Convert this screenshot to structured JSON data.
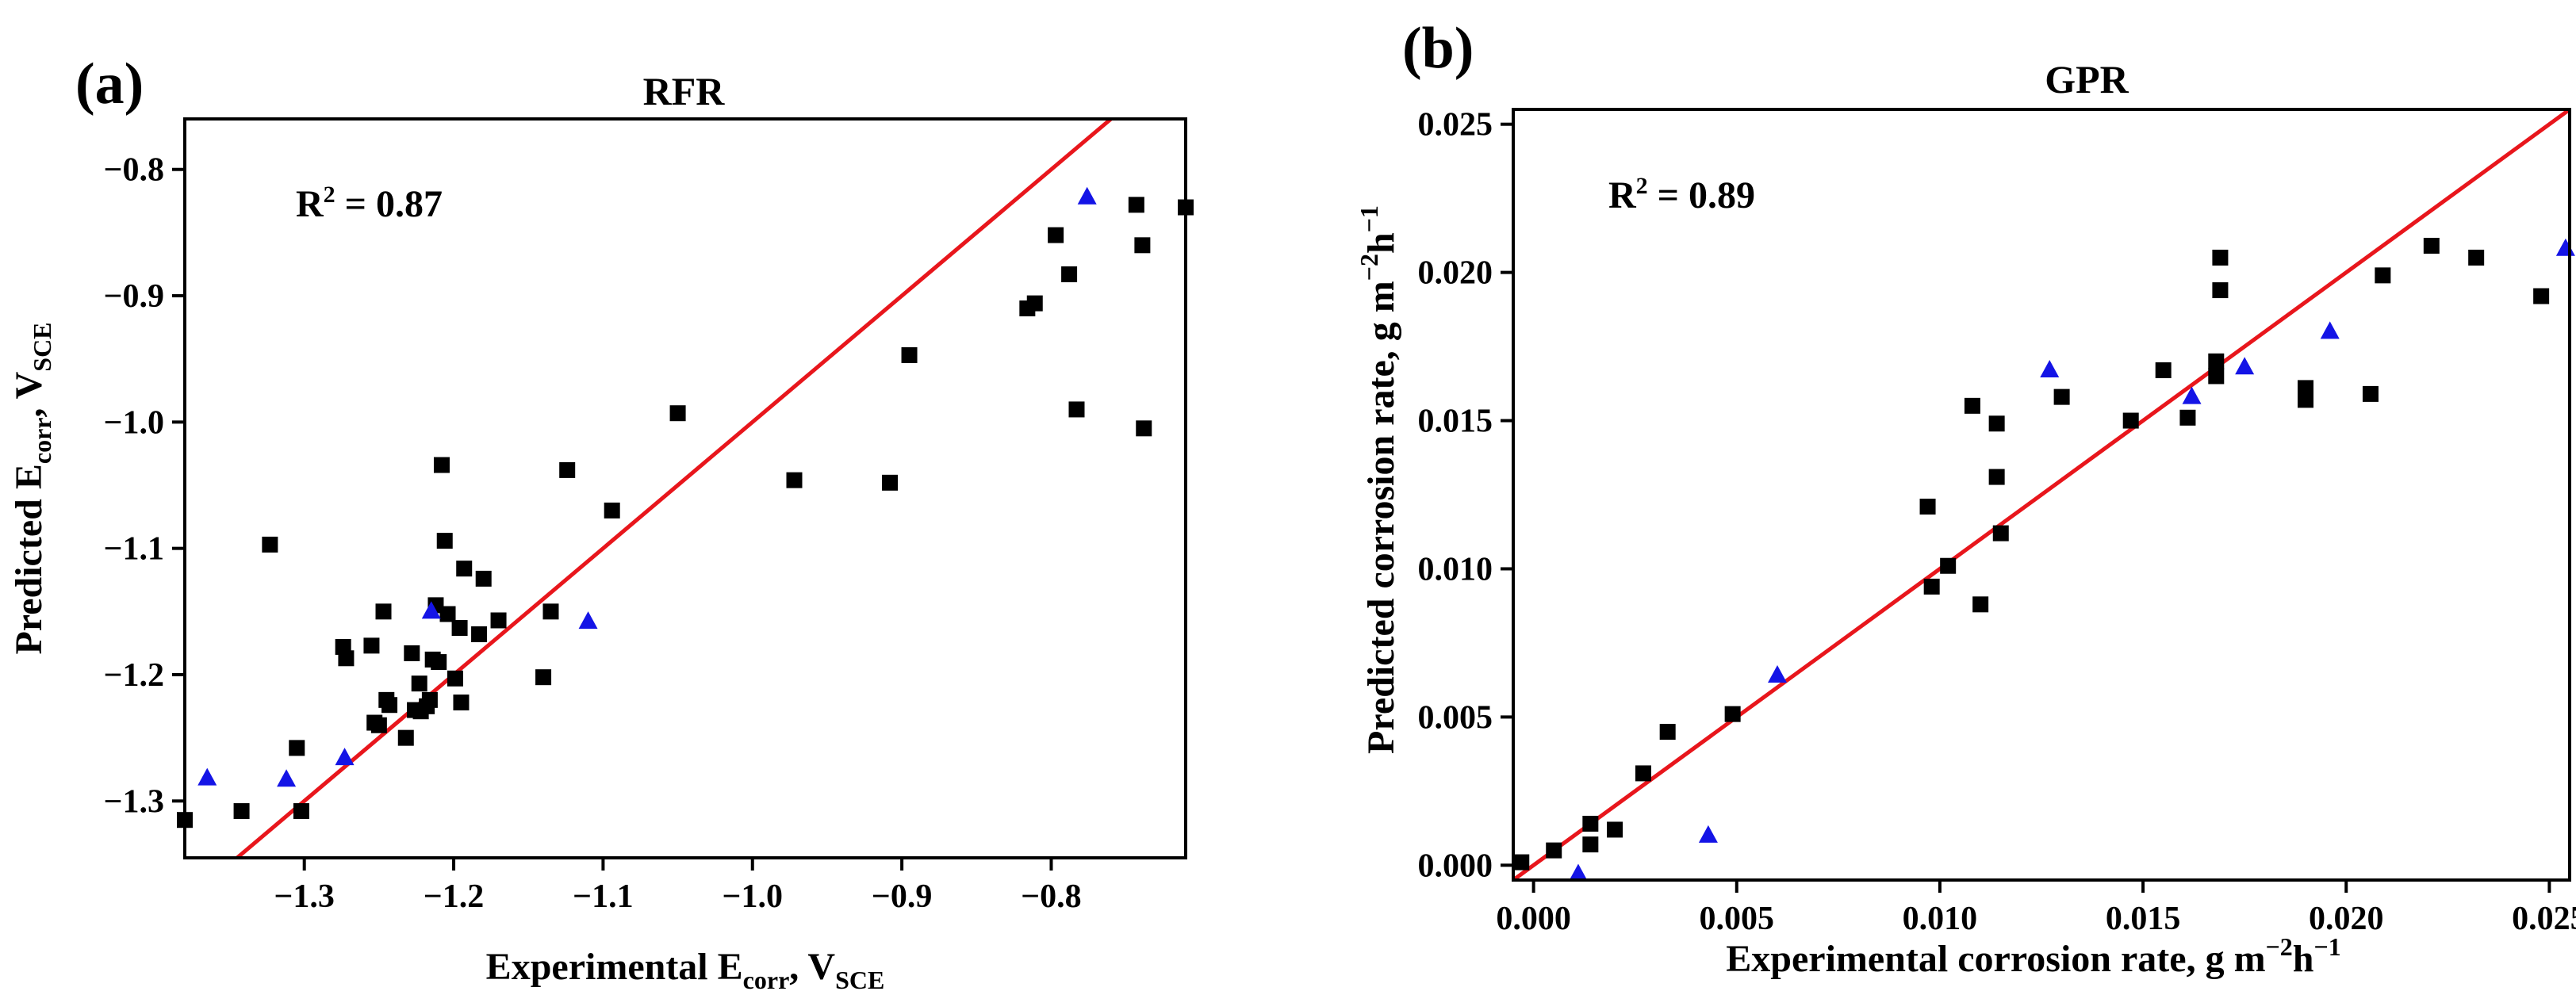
{
  "colors": {
    "fit_line": "#e8161c",
    "train_marker": "#000000",
    "test_marker": "#1414e6",
    "axis": "#000000"
  },
  "chart_data": [
    {
      "type": "scatter",
      "panel": "(a)",
      "title": "RFR",
      "r2_prefix": "R",
      "r2_sup": "2",
      "r2_value": " = 0.87",
      "xlabel": {
        "main": "Experimental E",
        "sub1": "corr",
        "mid": ", V",
        "sub2": "SCE"
      },
      "ylabel": {
        "main": "Predicted E",
        "sub1": "corr",
        "mid": ", V",
        "sub2": "SCE"
      },
      "xlim": [
        -1.38,
        -0.71
      ],
      "ylim": [
        -1.345,
        -0.76
      ],
      "xticks": [
        -1.3,
        -1.2,
        -1.1,
        -1.0,
        -0.9,
        -0.8
      ],
      "yticks": [
        -1.3,
        -1.2,
        -1.1,
        -1.0,
        -0.9,
        -0.8
      ],
      "xtick_labels": [
        "−1.3",
        "−1.2",
        "−1.1",
        "−1.0",
        "−0.9",
        "−0.8"
      ],
      "ytick_labels": [
        "−1.3",
        "−1.2",
        "−1.1",
        "−1.0",
        "−0.9",
        "−0.8"
      ],
      "line": {
        "x": [
          -1.38,
          -0.71
        ],
        "y": [
          -1.38,
          -0.71
        ]
      },
      "series": [
        {
          "name": "train",
          "marker": "square",
          "points": [
            [
              -1.38,
              -1.315
            ],
            [
              -1.342,
              -1.308
            ],
            [
              -1.302,
              -1.308
            ],
            [
              -1.305,
              -1.258
            ],
            [
              -1.323,
              -1.097
            ],
            [
              -1.274,
              -1.178
            ],
            [
              -1.272,
              -1.187
            ],
            [
              -1.253,
              -1.238
            ],
            [
              -1.25,
              -1.24
            ],
            [
              -1.245,
              -1.22
            ],
            [
              -1.243,
              -1.224
            ],
            [
              -1.255,
              -1.177
            ],
            [
              -1.247,
              -1.15
            ],
            [
              -1.232,
              -1.25
            ],
            [
              -1.228,
              -1.183
            ],
            [
              -1.226,
              -1.228
            ],
            [
              -1.222,
              -1.229
            ],
            [
              -1.223,
              -1.207
            ],
            [
              -1.218,
              -1.225
            ],
            [
              -1.216,
              -1.22
            ],
            [
              -1.214,
              -1.188
            ],
            [
              -1.212,
              -1.145
            ],
            [
              -1.21,
              -1.19
            ],
            [
              -1.208,
              -1.034
            ],
            [
              -1.206,
              -1.094
            ],
            [
              -1.204,
              -1.152
            ],
            [
              -1.199,
              -1.203
            ],
            [
              -1.196,
              -1.163
            ],
            [
              -1.195,
              -1.222
            ],
            [
              -1.193,
              -1.116
            ],
            [
              -1.183,
              -1.168
            ],
            [
              -1.18,
              -1.124
            ],
            [
              -1.17,
              -1.157
            ],
            [
              -1.14,
              -1.202
            ],
            [
              -1.135,
              -1.15
            ],
            [
              -1.124,
              -1.038
            ],
            [
              -1.094,
              -1.07
            ],
            [
              -1.05,
              -0.993
            ],
            [
              -0.972,
              -1.046
            ],
            [
              -0.908,
              -1.048
            ],
            [
              -0.895,
              -0.947
            ],
            [
              -0.816,
              -0.91
            ],
            [
              -0.811,
              -0.906
            ],
            [
              -0.797,
              -0.852
            ],
            [
              -0.788,
              -0.883
            ],
            [
              -0.783,
              -0.99
            ],
            [
              -0.743,
              -0.828
            ],
            [
              -0.739,
              -0.86
            ],
            [
              -0.738,
              -1.005
            ],
            [
              -0.71,
              -0.83
            ]
          ]
        },
        {
          "name": "test",
          "marker": "triangle",
          "points": [
            [
              -1.365,
              -1.282
            ],
            [
              -1.312,
              -1.283
            ],
            [
              -1.273,
              -1.266
            ],
            [
              -1.215,
              -1.15
            ],
            [
              -1.11,
              -1.158
            ],
            [
              -0.776,
              -0.822
            ]
          ]
        }
      ]
    },
    {
      "type": "scatter",
      "panel": "(b)",
      "title": "GPR",
      "r2_prefix": "R",
      "r2_sup": "2",
      "r2_value": " = 0.89",
      "xlabel": {
        "main": "Experimental corrosion rate, g m",
        "sup1": "−2",
        "mid": "h",
        "sup2": "−1"
      },
      "ylabel": {
        "main": "Predicted corrosion rate, g m",
        "sup1": "−2",
        "mid": "h",
        "sup2": "−1"
      },
      "xlim": [
        -0.0005,
        0.0255
      ],
      "ylim": [
        -0.0005,
        0.0255
      ],
      "xticks": [
        0.0,
        0.005,
        0.01,
        0.015,
        0.02,
        0.025
      ],
      "yticks": [
        0.0,
        0.005,
        0.01,
        0.015,
        0.02,
        0.025
      ],
      "xtick_labels": [
        "0.000",
        "0.005",
        "0.010",
        "0.015",
        "0.020",
        "0.025"
      ],
      "ytick_labels": [
        "0.000",
        "0.005",
        "0.010",
        "0.015",
        "0.020",
        "0.025"
      ],
      "line": {
        "x": [
          -0.0005,
          0.0255
        ],
        "y": [
          -0.0005,
          0.0255
        ]
      },
      "series": [
        {
          "name": "train",
          "marker": "square",
          "points": [
            [
              -0.0003,
              0.0001
            ],
            [
              0.0005,
              0.0005
            ],
            [
              0.0014,
              0.0014
            ],
            [
              0.0014,
              0.0007
            ],
            [
              0.002,
              0.0012
            ],
            [
              0.0027,
              0.0031
            ],
            [
              0.0033,
              0.0045
            ],
            [
              0.0049,
              0.0051
            ],
            [
              0.0097,
              0.0121
            ],
            [
              0.0098,
              0.0094
            ],
            [
              0.0102,
              0.0101
            ],
            [
              0.0108,
              0.0155
            ],
            [
              0.011,
              0.0088
            ],
            [
              0.0114,
              0.0149
            ],
            [
              0.0114,
              0.0131
            ],
            [
              0.0115,
              0.0112
            ],
            [
              0.013,
              0.0158
            ],
            [
              0.0147,
              0.015
            ],
            [
              0.0155,
              0.0167
            ],
            [
              0.0161,
              0.0151
            ],
            [
              0.0168,
              0.0165
            ],
            [
              0.0168,
              0.017
            ],
            [
              0.0169,
              0.0205
            ],
            [
              0.0169,
              0.0194
            ],
            [
              0.019,
              0.0161
            ],
            [
              0.019,
              0.0157
            ],
            [
              0.0206,
              0.0159
            ],
            [
              0.0209,
              0.0199
            ],
            [
              0.0221,
              0.0209
            ],
            [
              0.0232,
              0.0205
            ],
            [
              0.0248,
              0.0192
            ]
          ]
        },
        {
          "name": "test",
          "marker": "triangle",
          "points": [
            [
              0.0011,
              -0.0003
            ],
            [
              0.0043,
              0.001
            ],
            [
              0.006,
              0.0064
            ],
            [
              0.0127,
              0.0167
            ],
            [
              0.0162,
              0.0158
            ],
            [
              0.0175,
              0.0168
            ],
            [
              0.0196,
              0.018
            ],
            [
              0.0254,
              0.0208
            ]
          ]
        }
      ]
    }
  ]
}
